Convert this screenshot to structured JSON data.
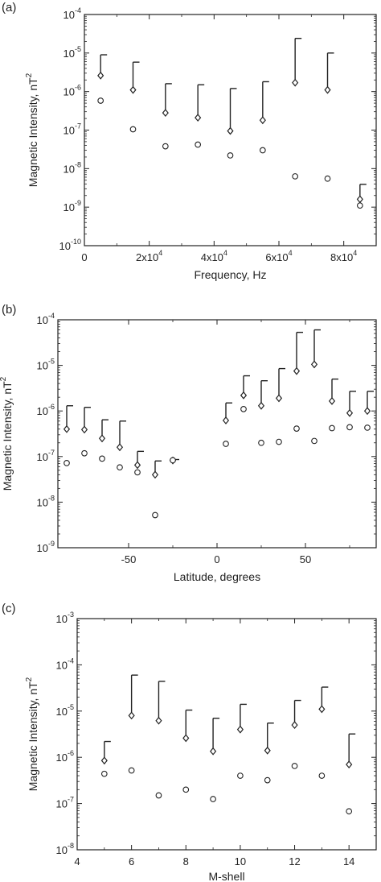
{
  "chart_data": [
    {
      "panel_label": "(a)",
      "type": "scatter",
      "xlabel": "Frequency, Hz",
      "ylabel": "Magnetic Intensity, nT",
      "ylabel_superscript": "2",
      "xscale": "linear",
      "yscale": "log",
      "xlim": [
        0,
        90000
      ],
      "ylim_exp": [
        -10,
        -4
      ],
      "x_ticks": [
        {
          "value": 0,
          "label": "0",
          "exp": ""
        },
        {
          "value": 20000,
          "label": "2x10",
          "exp": "4"
        },
        {
          "value": 40000,
          "label": "4x10",
          "exp": "4"
        },
        {
          "value": 60000,
          "label": "6x10",
          "exp": "4"
        },
        {
          "value": 80000,
          "label": "8x10",
          "exp": "4"
        }
      ],
      "y_ticks": [
        {
          "exp": -10,
          "label": "10",
          "sup": "-10"
        },
        {
          "exp": -9,
          "label": "10",
          "sup": "-9"
        },
        {
          "exp": -8,
          "label": "10",
          "sup": "-8"
        },
        {
          "exp": -7,
          "label": "10",
          "sup": "-7"
        },
        {
          "exp": -6,
          "label": "10",
          "sup": "-6"
        },
        {
          "exp": -5,
          "label": "10",
          "sup": "-5"
        },
        {
          "exp": -4,
          "label": "10",
          "sup": "-4"
        }
      ],
      "series": [
        {
          "marker": "diamond",
          "x": [
            5000,
            15000,
            25000,
            35000,
            45000,
            55000,
            65000,
            75000,
            85000
          ],
          "y": [
            2.6e-06,
            1.1e-06,
            2.8e-07,
            2.1e-07,
            9.5e-08,
            1.8e-07,
            1.7e-06,
            1.1e-06,
            1.6e-09
          ],
          "err_upper": [
            9e-06,
            5.8e-06,
            1.6e-06,
            1.5e-06,
            1.2e-06,
            1.8e-06,
            2.4e-05,
            1e-05,
            3.9e-09
          ]
        },
        {
          "marker": "circle",
          "x": [
            5000,
            15000,
            25000,
            35000,
            45000,
            55000,
            65000,
            75000,
            85000
          ],
          "y": [
            5.8e-07,
            1.05e-07,
            3.8e-08,
            4.2e-08,
            2.2e-08,
            3e-08,
            6.3e-09,
            5.5e-09,
            1.1e-09
          ]
        }
      ]
    },
    {
      "panel_label": "(b)",
      "type": "scatter",
      "xlabel": "Latitude, degrees",
      "ylabel": "Magnetic Intensity, nT",
      "ylabel_superscript": "2",
      "xscale": "linear",
      "yscale": "log",
      "xlim": [
        -90,
        90
      ],
      "ylim_exp": [
        -9,
        -4
      ],
      "x_ticks": [
        {
          "value": -50,
          "label": "-50",
          "exp": ""
        },
        {
          "value": 0,
          "label": "0",
          "exp": ""
        },
        {
          "value": 50,
          "label": "50",
          "exp": ""
        }
      ],
      "y_ticks": [
        {
          "exp": -9,
          "label": "10",
          "sup": "-9"
        },
        {
          "exp": -8,
          "label": "10",
          "sup": "-8"
        },
        {
          "exp": -7,
          "label": "10",
          "sup": "-7"
        },
        {
          "exp": -6,
          "label": "10",
          "sup": "-6"
        },
        {
          "exp": -5,
          "label": "10",
          "sup": "-5"
        },
        {
          "exp": -4,
          "label": "10",
          "sup": "-4"
        }
      ],
      "series": [
        {
          "marker": "diamond",
          "x": [
            -85,
            -75,
            -65,
            -55,
            -45,
            -35,
            -25,
            5,
            15,
            25,
            35,
            45,
            55,
            65,
            75,
            85
          ],
          "y": [
            4e-07,
            3.9e-07,
            2.5e-07,
            1.6e-07,
            6.5e-08,
            4e-08,
            8.2e-08,
            6.2e-07,
            2.2e-06,
            1.3e-06,
            1.9e-06,
            7.5e-06,
            1.05e-05,
            1.65e-06,
            9e-07,
            1e-06
          ],
          "err_upper": [
            1.3e-06,
            1.2e-06,
            6.4e-07,
            6e-07,
            1.3e-07,
            8e-08,
            8.6e-08,
            1.5e-06,
            5.9e-06,
            4.6e-06,
            8.5e-06,
            5.3e-05,
            6e-05,
            5e-06,
            2.7e-06,
            2.7e-06
          ]
        },
        {
          "marker": "circle",
          "x": [
            -85,
            -75,
            -65,
            -55,
            -45,
            -35,
            -25,
            5,
            15,
            25,
            35,
            45,
            55,
            65,
            75,
            85
          ],
          "y": [
            7.2e-08,
            1.18e-07,
            9e-08,
            5.8e-08,
            4.5e-08,
            5.2e-09,
            8.3e-08,
            1.9e-07,
            1.1e-06,
            2e-07,
            2.1e-07,
            4.1e-07,
            2.2e-07,
            4.2e-07,
            4.4e-07,
            4.3e-07
          ]
        }
      ]
    },
    {
      "panel_label": "(c)",
      "type": "scatter",
      "xlabel": "M-shell",
      "ylabel": "Magnetic Intensity, nT",
      "ylabel_superscript": "2",
      "xscale": "linear",
      "yscale": "log",
      "xlim": [
        4,
        15
      ],
      "ylim_exp": [
        -8,
        -3
      ],
      "x_ticks": [
        {
          "value": 4,
          "label": "4",
          "exp": ""
        },
        {
          "value": 6,
          "label": "6",
          "exp": ""
        },
        {
          "value": 8,
          "label": "8",
          "exp": ""
        },
        {
          "value": 10,
          "label": "10",
          "exp": ""
        },
        {
          "value": 12,
          "label": "12",
          "exp": ""
        },
        {
          "value": 14,
          "label": "14",
          "exp": ""
        }
      ],
      "y_ticks": [
        {
          "exp": -8,
          "label": "10",
          "sup": "-8"
        },
        {
          "exp": -7,
          "label": "10",
          "sup": "-7"
        },
        {
          "exp": -6,
          "label": "10",
          "sup": "-6"
        },
        {
          "exp": -5,
          "label": "10",
          "sup": "-5"
        },
        {
          "exp": -4,
          "label": "10",
          "sup": "-4"
        },
        {
          "exp": -3,
          "label": "10",
          "sup": "-3"
        }
      ],
      "series": [
        {
          "marker": "diamond",
          "x": [
            5,
            6,
            7,
            8,
            9,
            10,
            11,
            12,
            13,
            14
          ],
          "y": [
            8.5e-07,
            8e-06,
            6.2e-06,
            2.6e-06,
            1.35e-06,
            4e-06,
            1.4e-06,
            5e-06,
            1.1e-05,
            7e-07
          ],
          "err_upper": [
            2.2e-06,
            6e-05,
            4.4e-05,
            1.05e-05,
            7e-06,
            1.4e-05,
            5.5e-06,
            1.7e-05,
            3.3e-05,
            3.2e-06
          ]
        },
        {
          "marker": "circle",
          "x": [
            5,
            6,
            7,
            8,
            9,
            10,
            11,
            12,
            13,
            14
          ],
          "y": [
            4.4e-07,
            5.2e-07,
            1.5e-07,
            2e-07,
            1.25e-07,
            4e-07,
            3.2e-07,
            6.5e-07,
            4e-07,
            6.8e-08
          ]
        }
      ]
    }
  ]
}
